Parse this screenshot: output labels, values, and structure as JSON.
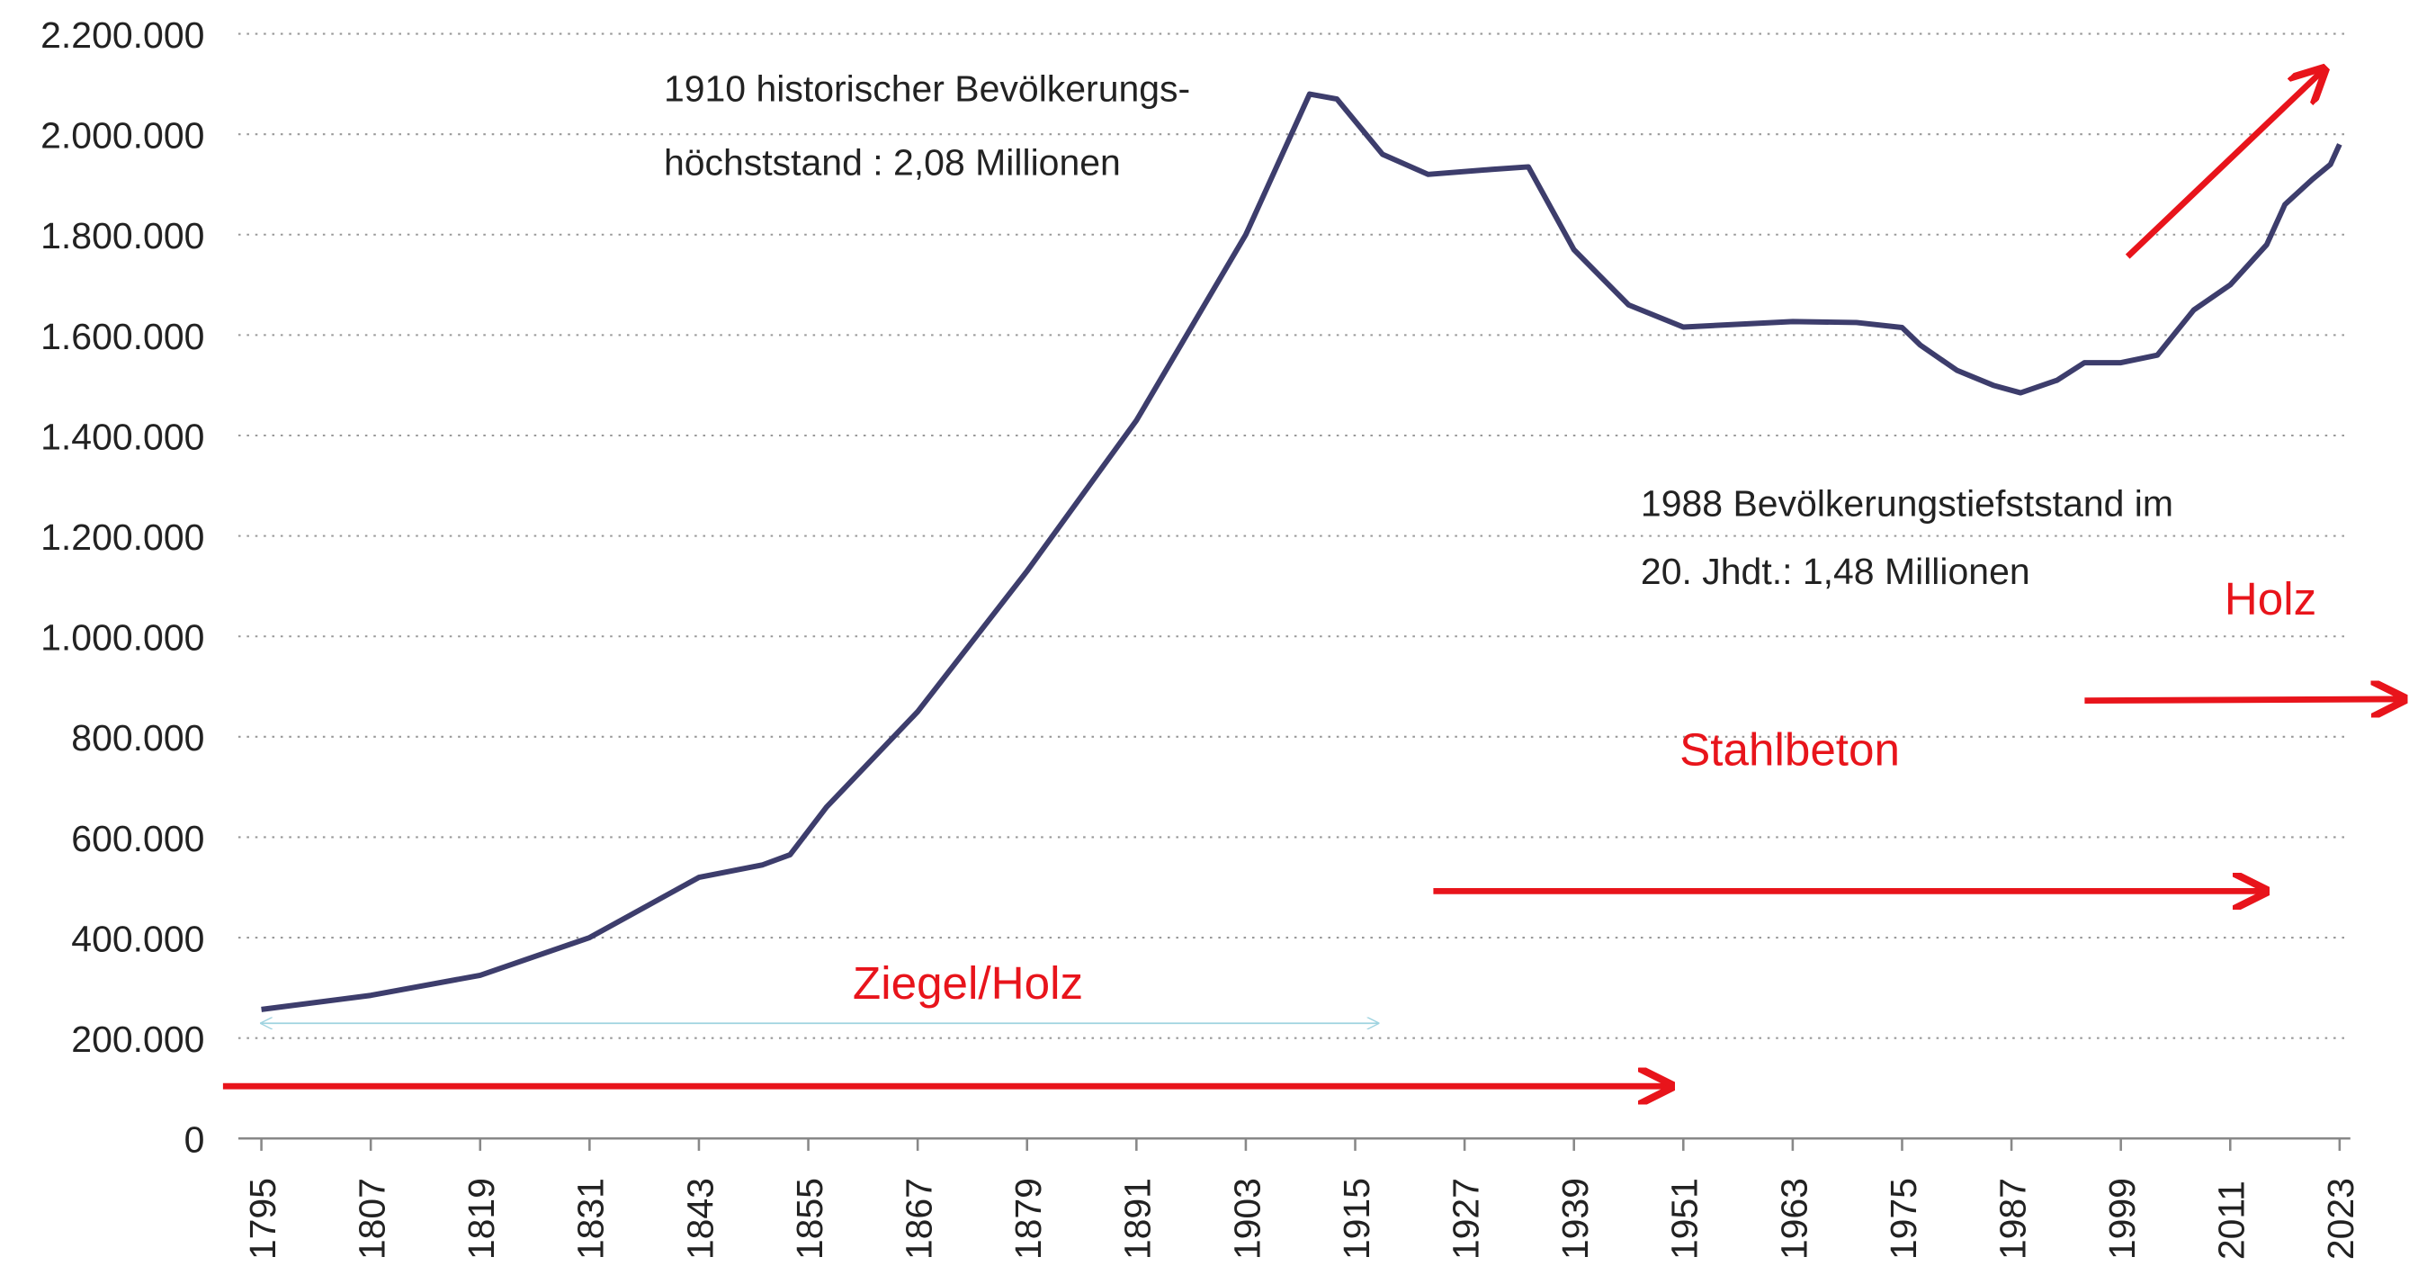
{
  "chart_data": {
    "type": "line",
    "x": [
      1795,
      1807,
      1819,
      1831,
      1843,
      1850,
      1853,
      1857,
      1867,
      1879,
      1891,
      1903,
      1910,
      1913,
      1918,
      1923,
      1930,
      1934,
      1939,
      1945,
      1951,
      1963,
      1970,
      1975,
      1977,
      1981,
      1985,
      1988,
      1992,
      1995,
      1999,
      2003,
      2007,
      2011,
      2015,
      2017,
      2020,
      2022,
      2023
    ],
    "series": [
      {
        "color": "#3d3d6c",
        "values": [
          257000,
          285000,
          325000,
          400000,
          520000,
          545000,
          565000,
          660000,
          850000,
          1130000,
          1430000,
          1800000,
          2080000,
          2070000,
          1960000,
          1920000,
          1930000,
          1935000,
          1770000,
          1660000,
          1616000,
          1627000,
          1625000,
          1615000,
          1580000,
          1530000,
          1500000,
          1485000,
          1510000,
          1545000,
          1545000,
          1560000,
          1650000,
          1700000,
          1780000,
          1860000,
          1910000,
          1940000,
          1980000
        ]
      }
    ],
    "xlim": [
      1795,
      2023
    ],
    "xticks": [
      1795,
      1807,
      1819,
      1831,
      1843,
      1855,
      1867,
      1879,
      1891,
      1903,
      1915,
      1927,
      1939,
      1951,
      1963,
      1975,
      1987,
      1999,
      2011,
      2023
    ],
    "ylim": [
      0,
      2200000
    ],
    "yticks": [
      0,
      {
        "value": 200000,
        "label": "200.000"
      },
      {
        "value": 400000,
        "label": "400.000"
      },
      {
        "value": 600000,
        "label": "600.000"
      },
      {
        "value": 800000,
        "label": "800.000"
      },
      {
        "value": 1000000,
        "label": "1.000.000"
      },
      {
        "value": 1200000,
        "label": "1.200.000"
      },
      {
        "value": 1400000,
        "label": "1.400.000"
      },
      {
        "value": 1600000,
        "label": "1.600.000"
      },
      {
        "value": 1800000,
        "label": "1.800.000"
      },
      {
        "value": 2000000,
        "label": "2.000.000"
      },
      {
        "value": 2200000,
        "label": "2.200.000"
      }
    ],
    "grid": true,
    "annotations": [
      [
        "1910 historischer Bevölkerungs-",
        "höchststand : 2,08 Millionen"
      ],
      [
        "1988 Bevölkerungstiefststand im",
        "20. Jhdt.: 1,48 Millionen"
      ],
      [
        "Ziegel/Holz"
      ],
      [
        "Stahlbeton"
      ],
      [
        "Holz"
      ]
    ]
  }
}
